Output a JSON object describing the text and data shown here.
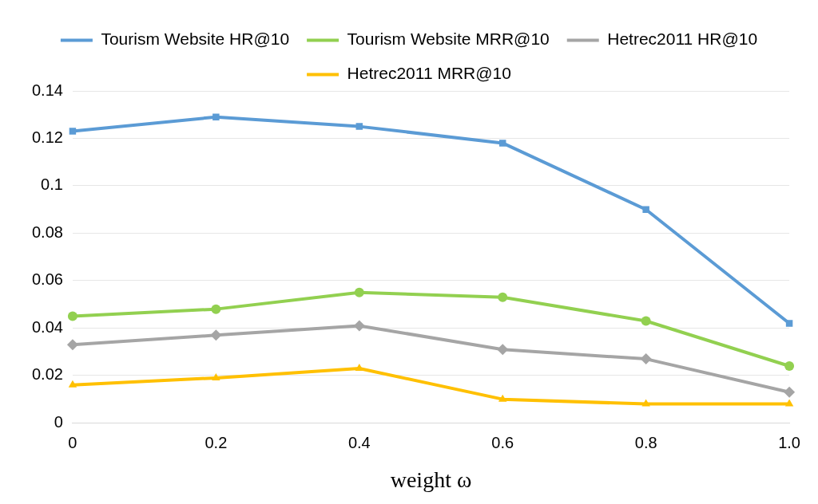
{
  "chart_data": {
    "type": "line",
    "xlabel": "weight ω",
    "categories": [
      "0",
      "0.2",
      "0.4",
      "0.6",
      "0.8",
      "1.0"
    ],
    "series": [
      {
        "name": "Tourism Website HR@10",
        "color": "#5b9bd5",
        "marker": "square",
        "values": [
          0.123,
          0.129,
          0.125,
          0.118,
          0.09,
          0.042
        ]
      },
      {
        "name": "Tourism Website MRR@10",
        "color": "#92d050",
        "marker": "circle",
        "values": [
          0.045,
          0.048,
          0.055,
          0.053,
          0.043,
          0.024
        ]
      },
      {
        "name": "Hetrec2011 HR@10",
        "color": "#a5a5a5",
        "marker": "diamond",
        "values": [
          0.033,
          0.037,
          0.041,
          0.031,
          0.027,
          0.013
        ]
      },
      {
        "name": "Hetrec2011 MRR@10",
        "color": "#ffc000",
        "marker": "triangle",
        "values": [
          0.016,
          0.019,
          0.023,
          0.01,
          0.008,
          0.008
        ]
      }
    ],
    "ylim": [
      0,
      0.14
    ],
    "yticks": [
      0,
      0.02,
      0.04,
      0.06,
      0.08,
      0.1,
      0.12,
      0.14
    ],
    "grid": "y",
    "legend": "top",
    "line_style": "solid"
  }
}
